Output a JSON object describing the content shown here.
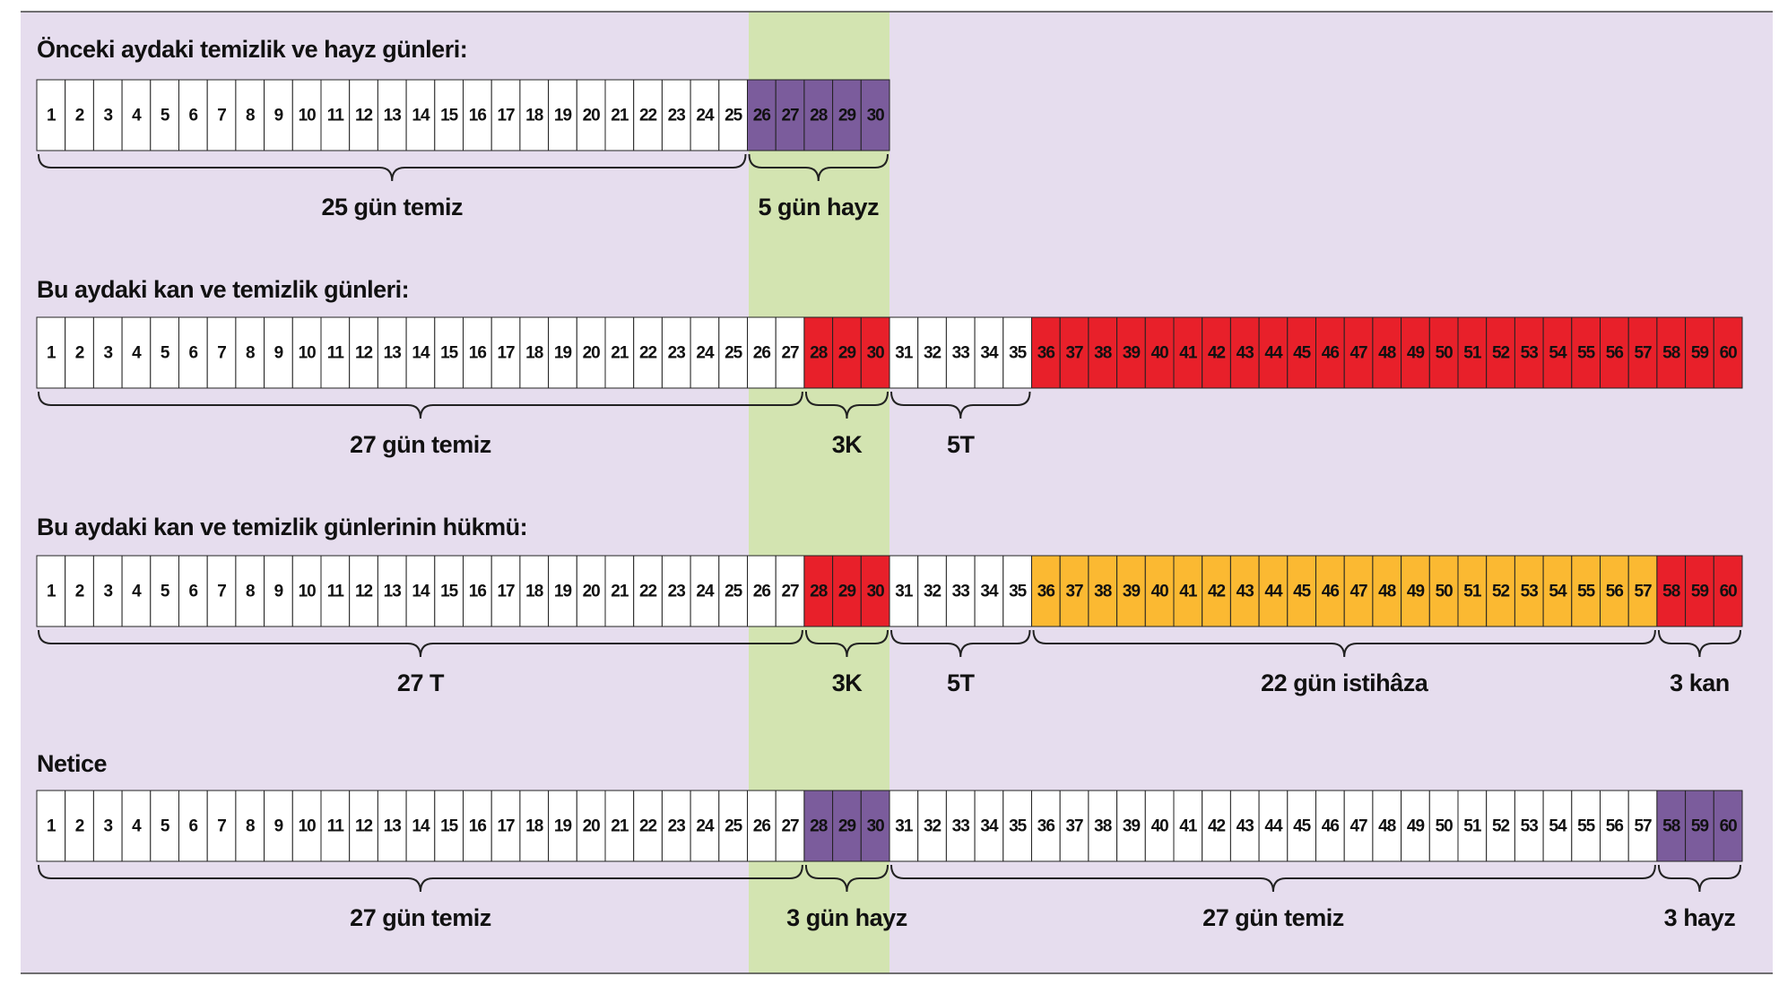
{
  "rows": [
    {
      "title": "Önceki aydaki temizlik ve hayz günleri:",
      "segments": [
        {
          "color": "#ffffff",
          "brace": "25 gün temiz",
          "days": [
            1,
            2,
            3,
            4,
            5,
            6,
            7,
            8,
            9,
            10,
            11,
            12,
            13,
            14,
            15,
            16,
            17,
            18,
            19,
            20,
            21,
            22,
            23,
            24,
            25
          ]
        },
        {
          "color": "#7b5c9c",
          "brace": "5 gün hayz",
          "days": [
            26,
            27,
            28,
            29,
            30
          ]
        }
      ]
    },
    {
      "title": "Bu aydaki kan ve temizlik günleri:",
      "segments": [
        {
          "color": "#ffffff",
          "brace": "27 gün temiz",
          "days": [
            1,
            2,
            3,
            4,
            5,
            6,
            7,
            8,
            9,
            10,
            11,
            12,
            13,
            14,
            15,
            16,
            17,
            18,
            19,
            20,
            21,
            22,
            23,
            24,
            25,
            26,
            27
          ]
        },
        {
          "color": "#e8202a",
          "brace": "3K",
          "days": [
            28,
            29,
            30
          ]
        },
        {
          "color": "#ffffff",
          "brace": "5T",
          "days": [
            31,
            32,
            33,
            34,
            35
          ]
        },
        {
          "color": "#e8202a",
          "days": [
            36,
            37,
            38,
            39,
            40,
            41,
            42,
            43,
            44,
            45,
            46,
            47,
            48,
            49,
            50,
            51,
            52,
            53,
            54,
            55,
            56,
            57,
            58,
            59,
            60
          ]
        }
      ]
    },
    {
      "title": "Bu aydaki kan ve temizlik günlerinin hükmü:",
      "segments": [
        {
          "color": "#ffffff",
          "brace": "27 T",
          "days": [
            1,
            2,
            3,
            4,
            5,
            6,
            7,
            8,
            9,
            10,
            11,
            12,
            13,
            14,
            15,
            16,
            17,
            18,
            19,
            20,
            21,
            22,
            23,
            24,
            25,
            26,
            27
          ]
        },
        {
          "color": "#e8202a",
          "brace": "3K",
          "days": [
            28,
            29,
            30
          ]
        },
        {
          "color": "#ffffff",
          "brace": "5T",
          "days": [
            31,
            32,
            33,
            34,
            35
          ]
        },
        {
          "color": "#fbb932",
          "brace": "22 gün istihâza",
          "days": [
            36,
            37,
            38,
            39,
            40,
            41,
            42,
            43,
            44,
            45,
            46,
            47,
            48,
            49,
            50,
            51,
            52,
            53,
            54,
            55,
            56,
            57
          ]
        },
        {
          "color": "#e8202a",
          "brace": "3 kan",
          "days": [
            58,
            59,
            60
          ]
        }
      ]
    },
    {
      "title": "Netice",
      "segments": [
        {
          "color": "#ffffff",
          "brace": "27 gün temiz",
          "days": [
            1,
            2,
            3,
            4,
            5,
            6,
            7,
            8,
            9,
            10,
            11,
            12,
            13,
            14,
            15,
            16,
            17,
            18,
            19,
            20,
            21,
            22,
            23,
            24,
            25,
            26,
            27
          ]
        },
        {
          "color": "#7b5c9c",
          "brace": "3 gün hayz",
          "days": [
            28,
            29,
            30
          ]
        },
        {
          "color": "#ffffff",
          "brace": "27 gün temiz",
          "days": [
            31,
            32,
            33,
            34,
            35,
            36,
            37,
            38,
            39,
            40,
            41,
            42,
            43,
            44,
            45,
            46,
            47,
            48,
            49,
            50,
            51,
            52,
            53,
            54,
            55,
            56,
            57
          ]
        },
        {
          "color": "#7b5c9c",
          "brace": "3 hayz",
          "days": [
            58,
            59,
            60
          ]
        }
      ]
    }
  ]
}
